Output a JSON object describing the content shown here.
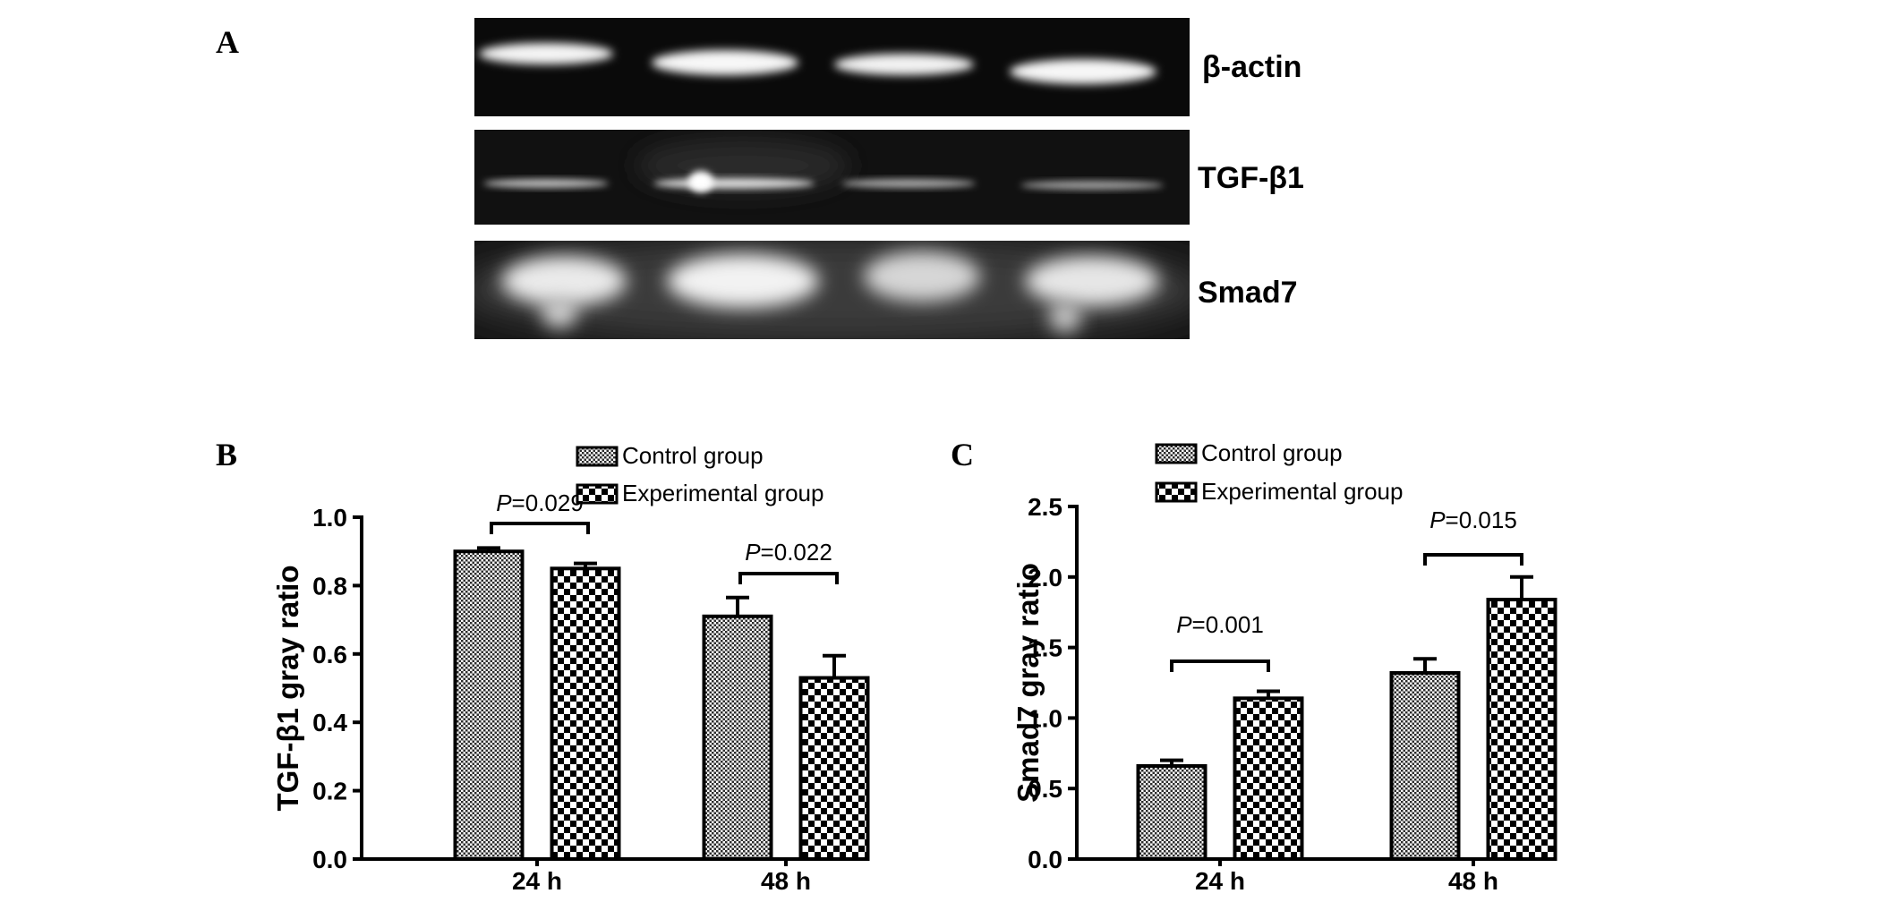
{
  "panel_a": {
    "letter": "A",
    "bands": [
      {
        "label": "β-actin"
      },
      {
        "label": "TGF-β1"
      },
      {
        "label": "Smad7"
      }
    ]
  },
  "chart_data": [
    {
      "panel": "B",
      "type": "bar",
      "categories": [
        "24 h",
        "48 h"
      ],
      "ylabel": "TGF-β1 gray ratio",
      "ylim": [
        0,
        1.0
      ],
      "yticks": [
        "0.0",
        "0.2",
        "0.4",
        "0.6",
        "0.8",
        "1.0"
      ],
      "series": [
        {
          "name": "Control group",
          "values": [
            0.9,
            0.71
          ],
          "errors": [
            0.01,
            0.055
          ]
        },
        {
          "name": "Experimental group",
          "values": [
            0.85,
            0.53
          ],
          "errors": [
            0.015,
            0.065
          ]
        }
      ],
      "annotations": [
        {
          "category": "24 h",
          "italic": "P",
          "text": "=0.029"
        },
        {
          "category": "48 h",
          "italic": "P",
          "text": "=0.022"
        }
      ],
      "legend": "top",
      "grid": false
    },
    {
      "panel": "C",
      "type": "bar",
      "categories": [
        "24 h",
        "48 h"
      ],
      "ylabel": "Smad7 gray ratio",
      "ylim": [
        0,
        2.5
      ],
      "yticks": [
        "0.0",
        "0.5",
        "1.0",
        "1.5",
        "2.0",
        "2.5"
      ],
      "series": [
        {
          "name": "Control group",
          "values": [
            0.66,
            1.32
          ],
          "errors": [
            0.04,
            0.1
          ]
        },
        {
          "name": "Experimental group",
          "values": [
            1.14,
            1.84
          ],
          "errors": [
            0.05,
            0.16
          ]
        }
      ],
      "annotations": [
        {
          "category": "24 h",
          "italic": "P",
          "text": "=0.001"
        },
        {
          "category": "48 h",
          "italic": "P",
          "text": "=0.015"
        }
      ],
      "legend": "top",
      "grid": false
    }
  ]
}
